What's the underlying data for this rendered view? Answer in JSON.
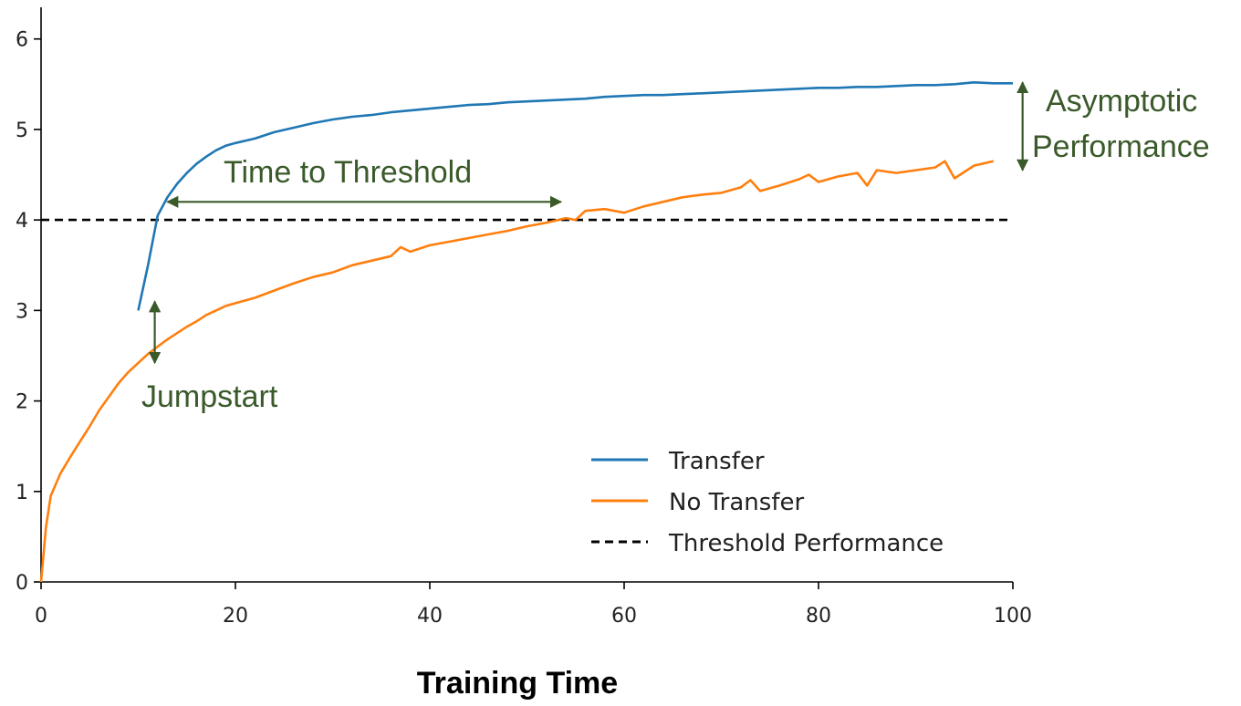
{
  "chart_data": {
    "type": "line",
    "title": "",
    "xlabel": "Training Time",
    "ylabel": "",
    "xlim": [
      0,
      100
    ],
    "ylim": [
      0,
      6.35
    ],
    "xticks": [
      0,
      20,
      40,
      60,
      80,
      100
    ],
    "yticks": [
      0,
      1,
      2,
      3,
      4,
      5,
      6
    ],
    "grid": false,
    "legend_position": "lower-right",
    "colors": {
      "transfer": "#1f77b4",
      "no_transfer": "#ff7f0e",
      "threshold": "#000000",
      "annotation": "#3a5a2a",
      "axis": "#000000"
    },
    "series": [
      {
        "name": "Transfer",
        "key": "transfer",
        "x": [
          10,
          11,
          12,
          13,
          14,
          15,
          16,
          17,
          18,
          19,
          20,
          22,
          24,
          26,
          28,
          30,
          32,
          34,
          36,
          38,
          40,
          42,
          44,
          46,
          48,
          50,
          52,
          54,
          56,
          58,
          60,
          62,
          64,
          66,
          68,
          70,
          72,
          74,
          76,
          78,
          80,
          82,
          84,
          86,
          88,
          90,
          92,
          94,
          96,
          98,
          100
        ],
        "values": [
          3.0,
          3.5,
          4.05,
          4.25,
          4.4,
          4.52,
          4.62,
          4.7,
          4.77,
          4.82,
          4.85,
          4.9,
          4.97,
          5.02,
          5.07,
          5.11,
          5.14,
          5.16,
          5.19,
          5.21,
          5.23,
          5.25,
          5.27,
          5.28,
          5.3,
          5.31,
          5.32,
          5.33,
          5.34,
          5.36,
          5.37,
          5.38,
          5.38,
          5.39,
          5.4,
          5.41,
          5.42,
          5.43,
          5.44,
          5.45,
          5.46,
          5.46,
          5.47,
          5.47,
          5.48,
          5.49,
          5.49,
          5.5,
          5.52,
          5.51,
          5.51
        ]
      },
      {
        "name": "No Transfer",
        "key": "no_transfer",
        "x": [
          0,
          0.5,
          1,
          2,
          3,
          4,
          5,
          6,
          7,
          8,
          9,
          10,
          11,
          12,
          13,
          14,
          15,
          16,
          17,
          18,
          19,
          20,
          22,
          24,
          26,
          28,
          30,
          32,
          34,
          36,
          37,
          38,
          40,
          42,
          44,
          46,
          48,
          50,
          52,
          54,
          55,
          56,
          58,
          60,
          62,
          64,
          66,
          68,
          70,
          72,
          73,
          74,
          76,
          78,
          79,
          80,
          82,
          84,
          85,
          86,
          88,
          90,
          92,
          93,
          94,
          96,
          98
        ],
        "values": [
          0.0,
          0.6,
          0.95,
          1.2,
          1.38,
          1.55,
          1.72,
          1.9,
          2.05,
          2.2,
          2.32,
          2.42,
          2.52,
          2.6,
          2.68,
          2.75,
          2.82,
          2.88,
          2.95,
          3.0,
          3.05,
          3.08,
          3.14,
          3.22,
          3.3,
          3.37,
          3.42,
          3.5,
          3.55,
          3.6,
          3.7,
          3.65,
          3.72,
          3.76,
          3.8,
          3.84,
          3.88,
          3.93,
          3.97,
          4.02,
          4.0,
          4.1,
          4.12,
          4.08,
          4.15,
          4.2,
          4.25,
          4.28,
          4.3,
          4.36,
          4.44,
          4.32,
          4.38,
          4.45,
          4.5,
          4.42,
          4.48,
          4.52,
          4.38,
          4.55,
          4.52,
          4.55,
          4.58,
          4.65,
          4.46,
          4.6,
          4.65
        ]
      },
      {
        "name": "Threshold Performance",
        "key": "threshold",
        "x": [
          0,
          100
        ],
        "values": [
          4.0,
          4.0
        ],
        "dashed": true
      }
    ],
    "legend": [
      "Transfer",
      "No Transfer",
      "Threshold Performance"
    ],
    "annotations": [
      {
        "text": "Time to Threshold",
        "type": "double-arrow",
        "from": [
          13,
          4.2
        ],
        "to": [
          53.5,
          4.2
        ]
      },
      {
        "text": "Jumpstart",
        "type": "double-arrow",
        "from": [
          11.7,
          3.1
        ],
        "to": [
          11.7,
          2.42
        ]
      },
      {
        "text": "Asymptotic Performance",
        "lines": [
          "Asymptotic",
          "Performance"
        ],
        "type": "double-arrow",
        "from": [
          101,
          5.52
        ],
        "to": [
          101,
          4.55
        ]
      }
    ]
  }
}
